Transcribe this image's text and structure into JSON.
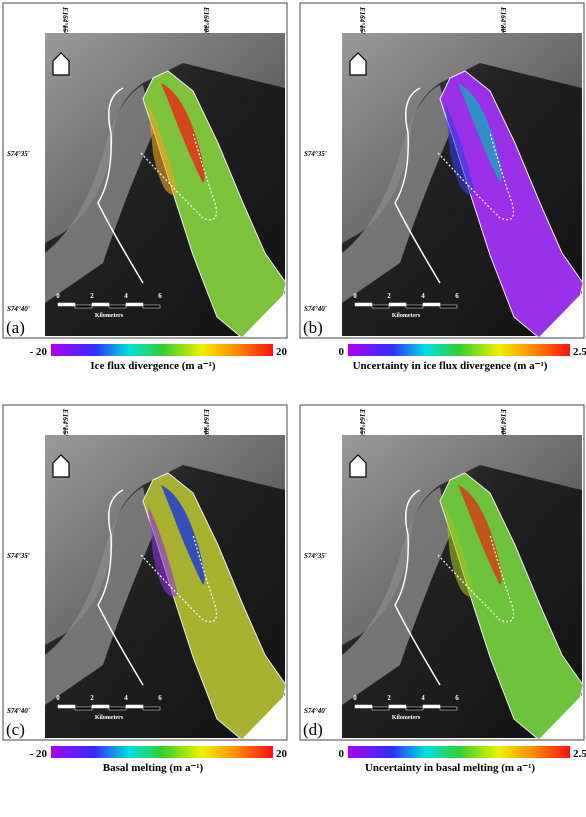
{
  "panels": [
    {
      "label": "(a)",
      "lon_labels": [
        "E164°15'",
        "E164°30'"
      ],
      "lat_labels": [
        "S74°35'",
        "S74°40'"
      ],
      "scale_labels": [
        "0",
        "2",
        "4",
        "6"
      ],
      "scale_unit": "Kilometers",
      "colorbar_min": "- 20",
      "colorbar_max": "20",
      "caption": "Ice flux divergence (m a⁻¹)"
    },
    {
      "label": "(b)",
      "lon_labels": [
        "E164°15'",
        "E164°30'"
      ],
      "lat_labels": [
        "S74°35'",
        "S74°40'"
      ],
      "scale_labels": [
        "0",
        "2",
        "4",
        "6"
      ],
      "scale_unit": "Kilometers",
      "colorbar_min": "0",
      "colorbar_max": "2.5",
      "caption": "Uncertainty in ice flux divergence (m a⁻¹)"
    },
    {
      "label": "(c)",
      "lon_labels": [
        "E164°15'",
        "E164°30'"
      ],
      "lat_labels": [
        "S74°35'",
        "S74°40'"
      ],
      "scale_labels": [
        "0",
        "2",
        "4",
        "6"
      ],
      "scale_unit": "Kilometers",
      "colorbar_min": "- 20",
      "colorbar_max": "20",
      "caption": "Basal melting (m a⁻¹)"
    },
    {
      "label": "(d)",
      "lon_labels": [
        "E164°15'",
        "E164°30'"
      ],
      "lat_labels": [
        "S74°35'",
        "S74°40'"
      ],
      "scale_labels": [
        "0",
        "2",
        "4",
        "6"
      ],
      "scale_unit": "Kilometers",
      "colorbar_min": "0",
      "colorbar_max": "2.5",
      "caption": "Uncertainty in basal melting (m a⁻¹)"
    }
  ]
}
